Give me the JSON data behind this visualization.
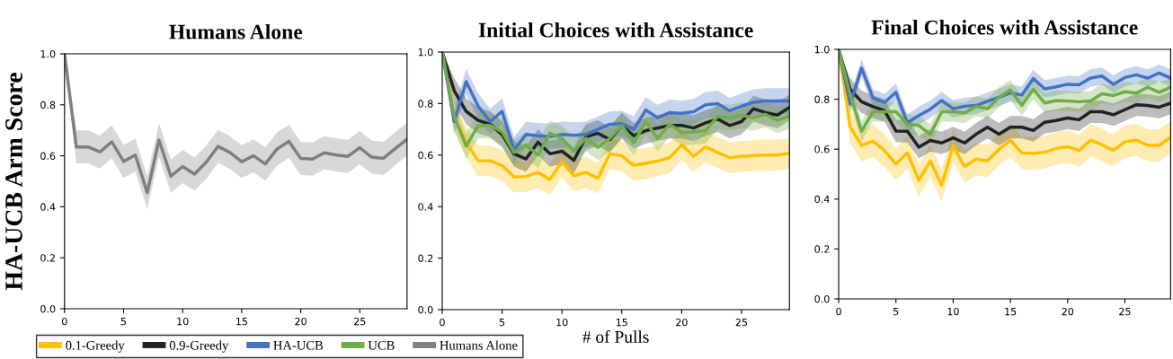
{
  "chart_data": [
    {
      "type": "line",
      "title": "Humans Alone",
      "ylabel": "HA-UCB Arm Score",
      "x": [
        0,
        1,
        2,
        3,
        4,
        5,
        6,
        7,
        8,
        9,
        10,
        11,
        12,
        13,
        14,
        15,
        16,
        17,
        18,
        19,
        20,
        21,
        22,
        23,
        24,
        25,
        26,
        27,
        28,
        29
      ],
      "xlim": [
        0,
        29
      ],
      "xticks": [
        0,
        5,
        10,
        15,
        20,
        25
      ],
      "ylim": [
        0,
        1
      ],
      "yticks": [
        {
          "value": 0,
          "label": "0.0"
        },
        {
          "value": 0.2,
          "label": "0.2"
        },
        {
          "value": 0.4,
          "label": "0.4"
        },
        {
          "value": 0.6,
          "label": "0.6"
        },
        {
          "value": 0.8,
          "label": "0.8"
        },
        {
          "value": 1,
          "label": "1.0"
        }
      ],
      "series": [
        {
          "name": "Humans Alone",
          "color": "#7f7f7f",
          "values": [
            1.0,
            0.635,
            0.635,
            0.615,
            0.655,
            0.578,
            0.603,
            0.455,
            0.662,
            0.52,
            0.558,
            0.528,
            0.575,
            0.637,
            0.613,
            0.577,
            0.6,
            0.568,
            0.627,
            0.657,
            0.59,
            0.587,
            0.612,
            0.603,
            0.598,
            0.632,
            0.595,
            0.59,
            0.628,
            0.665
          ],
          "lower": [
            1.0,
            0.57,
            0.57,
            0.55,
            0.59,
            0.513,
            0.538,
            0.39,
            0.597,
            0.455,
            0.493,
            0.463,
            0.51,
            0.572,
            0.548,
            0.512,
            0.535,
            0.503,
            0.562,
            0.592,
            0.525,
            0.522,
            0.547,
            0.538,
            0.533,
            0.567,
            0.53,
            0.525,
            0.563,
            0.6
          ],
          "upper": [
            1.0,
            0.7,
            0.7,
            0.68,
            0.72,
            0.643,
            0.668,
            0.52,
            0.727,
            0.585,
            0.623,
            0.593,
            0.64,
            0.702,
            0.678,
            0.642,
            0.665,
            0.633,
            0.692,
            0.722,
            0.655,
            0.652,
            0.677,
            0.668,
            0.663,
            0.697,
            0.66,
            0.655,
            0.693,
            0.73
          ]
        }
      ]
    },
    {
      "type": "line",
      "title": "Initial Choices with Assistance",
      "xlabel": "# of Pulls",
      "legend": "bottom left",
      "x": [
        0,
        1,
        2,
        3,
        4,
        5,
        6,
        7,
        8,
        9,
        10,
        11,
        12,
        13,
        14,
        15,
        16,
        17,
        18,
        19,
        20,
        21,
        22,
        23,
        24,
        25,
        26,
        27,
        28,
        29
      ],
      "xlim": [
        0,
        29
      ],
      "xticks": [
        0,
        5,
        10,
        15,
        20,
        25
      ],
      "ylim": [
        0,
        1
      ],
      "yticks": [
        {
          "value": 0,
          "label": "0.0"
        },
        {
          "value": 0.2,
          "label": "0.2"
        },
        {
          "value": 0.4,
          "label": "0.4"
        },
        {
          "value": 0.6,
          "label": "0.6"
        },
        {
          "value": 0.8,
          "label": "0.8"
        },
        {
          "value": 1,
          "label": "1.0"
        }
      ],
      "series": [
        {
          "name": "0.1-Greedy",
          "color": "#ffc000",
          "values": [
            1.0,
            0.75,
            0.65,
            0.578,
            0.578,
            0.56,
            0.515,
            0.517,
            0.532,
            0.505,
            0.573,
            0.52,
            0.533,
            0.51,
            0.605,
            0.597,
            0.56,
            0.568,
            0.577,
            0.59,
            0.64,
            0.595,
            0.632,
            0.61,
            0.59,
            0.595,
            0.598,
            0.6,
            0.6,
            0.607
          ],
          "lower": [
            1.0,
            0.69,
            0.59,
            0.518,
            0.518,
            0.5,
            0.455,
            0.457,
            0.472,
            0.445,
            0.513,
            0.46,
            0.473,
            0.45,
            0.545,
            0.537,
            0.5,
            0.508,
            0.517,
            0.53,
            0.58,
            0.535,
            0.572,
            0.55,
            0.53,
            0.535,
            0.538,
            0.54,
            0.54,
            0.547
          ],
          "upper": [
            1.0,
            0.81,
            0.71,
            0.638,
            0.638,
            0.62,
            0.575,
            0.577,
            0.592,
            0.565,
            0.633,
            0.58,
            0.593,
            0.57,
            0.665,
            0.657,
            0.62,
            0.628,
            0.637,
            0.65,
            0.7,
            0.655,
            0.692,
            0.67,
            0.65,
            0.655,
            0.658,
            0.66,
            0.66,
            0.667
          ]
        },
        {
          "name": "0.9-Greedy",
          "color": "#222222",
          "values": [
            1.0,
            0.85,
            0.77,
            0.735,
            0.72,
            0.68,
            0.605,
            0.585,
            0.65,
            0.605,
            0.615,
            0.58,
            0.67,
            0.685,
            0.66,
            0.715,
            0.675,
            0.695,
            0.705,
            0.715,
            0.715,
            0.705,
            0.725,
            0.74,
            0.715,
            0.73,
            0.78,
            0.765,
            0.755,
            0.785
          ],
          "lower": [
            1.0,
            0.8,
            0.72,
            0.685,
            0.67,
            0.63,
            0.555,
            0.535,
            0.6,
            0.555,
            0.565,
            0.53,
            0.62,
            0.635,
            0.61,
            0.665,
            0.625,
            0.645,
            0.655,
            0.665,
            0.665,
            0.655,
            0.675,
            0.69,
            0.665,
            0.68,
            0.73,
            0.715,
            0.705,
            0.735
          ],
          "upper": [
            1.0,
            0.9,
            0.82,
            0.785,
            0.77,
            0.73,
            0.655,
            0.635,
            0.7,
            0.655,
            0.665,
            0.63,
            0.72,
            0.735,
            0.71,
            0.765,
            0.725,
            0.745,
            0.755,
            0.765,
            0.765,
            0.755,
            0.775,
            0.79,
            0.765,
            0.78,
            0.83,
            0.815,
            0.805,
            0.835
          ]
        },
        {
          "name": "HA-UCB",
          "color": "#4472c4",
          "values": [
            1.0,
            0.73,
            0.885,
            0.79,
            0.73,
            0.77,
            0.62,
            0.68,
            0.675,
            0.672,
            0.68,
            0.677,
            0.68,
            0.7,
            0.72,
            0.722,
            0.7,
            0.775,
            0.745,
            0.765,
            0.762,
            0.768,
            0.795,
            0.8,
            0.772,
            0.79,
            0.805,
            0.81,
            0.81,
            0.81
          ],
          "lower": [
            1.0,
            0.68,
            0.835,
            0.74,
            0.68,
            0.72,
            0.57,
            0.63,
            0.625,
            0.622,
            0.63,
            0.627,
            0.63,
            0.65,
            0.67,
            0.672,
            0.65,
            0.725,
            0.695,
            0.715,
            0.712,
            0.718,
            0.745,
            0.75,
            0.722,
            0.74,
            0.755,
            0.76,
            0.76,
            0.76
          ],
          "upper": [
            1.0,
            0.78,
            0.935,
            0.84,
            0.78,
            0.82,
            0.67,
            0.73,
            0.725,
            0.722,
            0.73,
            0.727,
            0.73,
            0.75,
            0.77,
            0.772,
            0.75,
            0.825,
            0.795,
            0.815,
            0.812,
            0.818,
            0.845,
            0.85,
            0.822,
            0.84,
            0.855,
            0.86,
            0.86,
            0.86
          ]
        },
        {
          "name": "UCB",
          "color": "#70ad47",
          "values": [
            1.0,
            0.75,
            0.635,
            0.715,
            0.715,
            0.69,
            0.61,
            0.64,
            0.6,
            0.685,
            0.665,
            0.615,
            0.665,
            0.63,
            0.665,
            0.715,
            0.648,
            0.73,
            0.665,
            0.72,
            0.688,
            0.69,
            0.695,
            0.75,
            0.745,
            0.755,
            0.745,
            0.758,
            0.735,
            0.752
          ],
          "lower": [
            1.0,
            0.7,
            0.585,
            0.665,
            0.665,
            0.64,
            0.56,
            0.59,
            0.55,
            0.635,
            0.615,
            0.565,
            0.615,
            0.58,
            0.615,
            0.665,
            0.598,
            0.68,
            0.615,
            0.67,
            0.638,
            0.64,
            0.645,
            0.7,
            0.695,
            0.705,
            0.695,
            0.708,
            0.685,
            0.702
          ],
          "upper": [
            1.0,
            0.8,
            0.685,
            0.765,
            0.765,
            0.74,
            0.66,
            0.69,
            0.65,
            0.735,
            0.715,
            0.665,
            0.715,
            0.68,
            0.715,
            0.765,
            0.698,
            0.78,
            0.715,
            0.77,
            0.738,
            0.74,
            0.745,
            0.8,
            0.795,
            0.805,
            0.795,
            0.808,
            0.785,
            0.802
          ]
        }
      ]
    },
    {
      "type": "line",
      "title": "Final Choices with Assistance",
      "x": [
        0,
        1,
        2,
        3,
        4,
        5,
        6,
        7,
        8,
        9,
        10,
        11,
        12,
        13,
        14,
        15,
        16,
        17,
        18,
        19,
        20,
        21,
        22,
        23,
        24,
        25,
        26,
        27,
        28,
        29
      ],
      "xlim": [
        0,
        29
      ],
      "xticks": [
        0,
        5,
        10,
        15,
        20,
        25
      ],
      "ylim": [
        0,
        1
      ],
      "yticks": [
        {
          "value": 0,
          "label": "0.0"
        },
        {
          "value": 0.2,
          "label": "0.2"
        },
        {
          "value": 0.4,
          "label": "0.4"
        },
        {
          "value": 0.6,
          "label": "0.6"
        },
        {
          "value": 0.8,
          "label": "0.8"
        },
        {
          "value": 1,
          "label": "1.0"
        }
      ],
      "series": [
        {
          "name": "0.1-Greedy",
          "color": "#ffc000",
          "values": [
            1.0,
            0.69,
            0.615,
            0.633,
            0.595,
            0.54,
            0.585,
            0.475,
            0.553,
            0.455,
            0.613,
            0.53,
            0.56,
            0.553,
            0.6,
            0.635,
            0.585,
            0.583,
            0.588,
            0.603,
            0.61,
            0.595,
            0.635,
            0.618,
            0.595,
            0.63,
            0.637,
            0.615,
            0.615,
            0.648
          ],
          "lower": [
            1.0,
            0.625,
            0.55,
            0.568,
            0.53,
            0.475,
            0.52,
            0.41,
            0.488,
            0.39,
            0.548,
            0.465,
            0.495,
            0.488,
            0.535,
            0.57,
            0.52,
            0.518,
            0.523,
            0.538,
            0.545,
            0.53,
            0.57,
            0.553,
            0.53,
            0.565,
            0.572,
            0.55,
            0.55,
            0.583
          ],
          "upper": [
            1.0,
            0.755,
            0.68,
            0.698,
            0.66,
            0.605,
            0.65,
            0.54,
            0.618,
            0.52,
            0.678,
            0.595,
            0.625,
            0.618,
            0.665,
            0.7,
            0.65,
            0.648,
            0.653,
            0.668,
            0.675,
            0.66,
            0.7,
            0.683,
            0.66,
            0.695,
            0.702,
            0.68,
            0.68,
            0.713
          ]
        },
        {
          "name": "0.9-Greedy",
          "color": "#222222",
          "values": [
            1.0,
            0.84,
            0.79,
            0.77,
            0.755,
            0.673,
            0.672,
            0.608,
            0.635,
            0.625,
            0.645,
            0.625,
            0.66,
            0.688,
            0.66,
            0.688,
            0.688,
            0.675,
            0.708,
            0.715,
            0.725,
            0.718,
            0.75,
            0.75,
            0.738,
            0.758,
            0.778,
            0.775,
            0.768,
            0.785
          ],
          "lower": [
            1.0,
            0.795,
            0.745,
            0.725,
            0.71,
            0.628,
            0.627,
            0.563,
            0.59,
            0.58,
            0.6,
            0.58,
            0.615,
            0.643,
            0.615,
            0.643,
            0.643,
            0.63,
            0.663,
            0.67,
            0.68,
            0.673,
            0.705,
            0.705,
            0.693,
            0.713,
            0.733,
            0.73,
            0.723,
            0.74
          ],
          "upper": [
            1.0,
            0.885,
            0.835,
            0.815,
            0.8,
            0.718,
            0.717,
            0.653,
            0.68,
            0.67,
            0.69,
            0.67,
            0.705,
            0.733,
            0.705,
            0.733,
            0.733,
            0.72,
            0.753,
            0.76,
            0.77,
            0.763,
            0.795,
            0.795,
            0.783,
            0.803,
            0.823,
            0.82,
            0.813,
            0.83
          ]
        },
        {
          "name": "HA-UCB",
          "color": "#4472c4",
          "values": [
            1.0,
            0.78,
            0.925,
            0.805,
            0.787,
            0.828,
            0.705,
            0.735,
            0.76,
            0.795,
            0.762,
            0.772,
            0.775,
            0.792,
            0.808,
            0.825,
            0.817,
            0.883,
            0.842,
            0.85,
            0.86,
            0.858,
            0.885,
            0.893,
            0.86,
            0.887,
            0.898,
            0.885,
            0.905,
            0.885
          ],
          "lower": [
            1.0,
            0.745,
            0.89,
            0.77,
            0.752,
            0.793,
            0.67,
            0.7,
            0.725,
            0.76,
            0.727,
            0.737,
            0.74,
            0.757,
            0.773,
            0.79,
            0.782,
            0.848,
            0.807,
            0.815,
            0.825,
            0.823,
            0.85,
            0.858,
            0.825,
            0.852,
            0.863,
            0.85,
            0.87,
            0.85
          ],
          "upper": [
            1.0,
            0.815,
            0.96,
            0.84,
            0.822,
            0.863,
            0.74,
            0.77,
            0.795,
            0.83,
            0.797,
            0.807,
            0.81,
            0.827,
            0.843,
            0.86,
            0.852,
            0.918,
            0.877,
            0.885,
            0.895,
            0.893,
            0.92,
            0.928,
            0.895,
            0.922,
            0.933,
            0.92,
            0.94,
            0.92
          ]
        },
        {
          "name": "UCB",
          "color": "#70ad47",
          "values": [
            1.0,
            0.82,
            0.672,
            0.75,
            0.75,
            0.75,
            0.7,
            0.695,
            0.66,
            0.75,
            0.75,
            0.745,
            0.772,
            0.762,
            0.808,
            0.837,
            0.775,
            0.84,
            0.785,
            0.795,
            0.793,
            0.79,
            0.793,
            0.822,
            0.815,
            0.83,
            0.825,
            0.848,
            0.828,
            0.848
          ],
          "lower": [
            1.0,
            0.78,
            0.632,
            0.71,
            0.71,
            0.71,
            0.66,
            0.655,
            0.62,
            0.71,
            0.71,
            0.705,
            0.732,
            0.722,
            0.768,
            0.797,
            0.735,
            0.8,
            0.745,
            0.755,
            0.753,
            0.75,
            0.753,
            0.782,
            0.775,
            0.79,
            0.785,
            0.808,
            0.788,
            0.808
          ],
          "upper": [
            1.0,
            0.86,
            0.712,
            0.79,
            0.79,
            0.79,
            0.74,
            0.735,
            0.7,
            0.79,
            0.79,
            0.785,
            0.812,
            0.802,
            0.848,
            0.877,
            0.815,
            0.88,
            0.825,
            0.835,
            0.833,
            0.83,
            0.833,
            0.862,
            0.855,
            0.87,
            0.865,
            0.888,
            0.868,
            0.888
          ]
        }
      ]
    }
  ]
}
